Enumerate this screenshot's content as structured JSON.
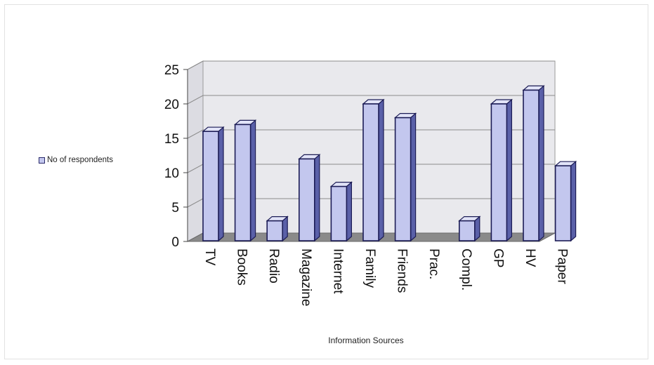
{
  "chart_data": {
    "type": "bar",
    "categories": [
      "TV",
      "Books",
      "Radio",
      "Magazine",
      "Internet",
      "Family",
      "Friends",
      "Prac.",
      "Compl.",
      "GP",
      "HV",
      "Paper"
    ],
    "series": [
      {
        "name": "No of respondents",
        "values": [
          16,
          17,
          3,
          12,
          8,
          20,
          18,
          0,
          3,
          20,
          22,
          11
        ]
      }
    ],
    "y_ticks": [
      "0",
      "5",
      "10",
      "15",
      "20",
      "25"
    ],
    "ylim": [
      0,
      25
    ],
    "xlabel": "Information Sources",
    "ylabel": "",
    "grid": true,
    "legend": "left",
    "colors": {
      "bar_front": "#c3c7ee",
      "bar_side": "#5a60a8",
      "bar_top": "#e2e4f8",
      "bar_outline": "#1c1c55",
      "wall": "#e9e9ed",
      "floor": "#8a8a8a"
    }
  }
}
